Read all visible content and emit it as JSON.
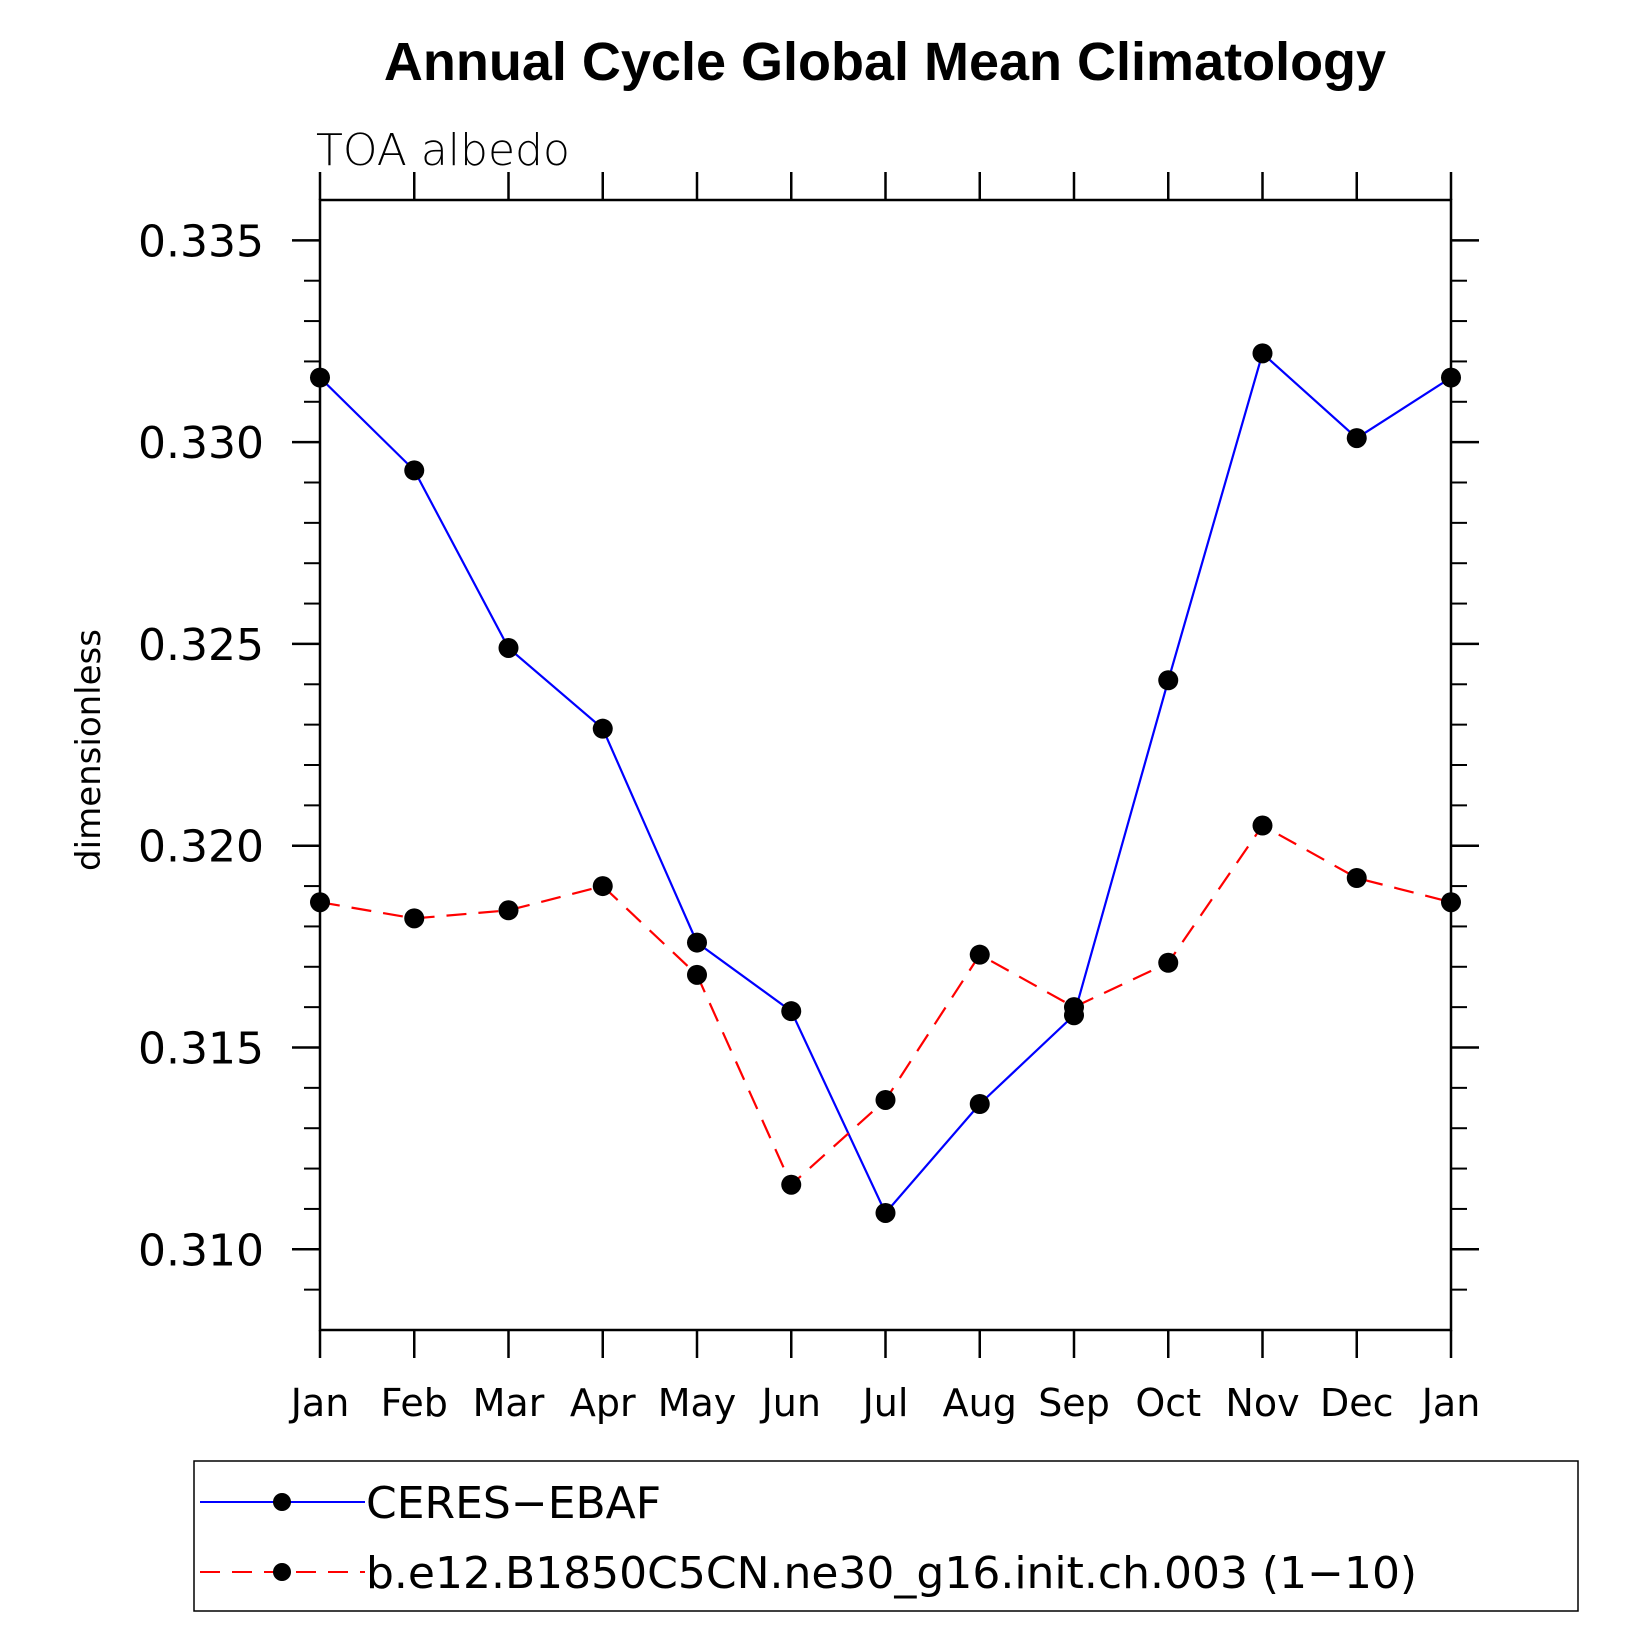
{
  "chart_data": {
    "type": "line",
    "title": "Annual Cycle Global Mean Climatology",
    "subtitle": "TOA  albedo",
    "xlabel": "",
    "ylabel": "dimensionless",
    "categories": [
      "Jan",
      "Feb",
      "Mar",
      "Apr",
      "May",
      "Jun",
      "Jul",
      "Aug",
      "Sep",
      "Oct",
      "Nov",
      "Dec",
      "Jan"
    ],
    "ylim": [
      0.308,
      0.336
    ],
    "yticks": [
      0.31,
      0.315,
      0.32,
      0.325,
      0.33,
      0.335
    ],
    "ytick_labels": [
      "0.310",
      "0.315",
      "0.320",
      "0.325",
      "0.330",
      "0.335"
    ],
    "grid": false,
    "legend_position": "bottom",
    "series": [
      {
        "name": "CERES−EBAF",
        "color": "#0000ff",
        "dash": "solid",
        "marker": "filled-circle",
        "values": [
          0.3316,
          0.3293,
          0.3249,
          0.3229,
          0.3176,
          0.3159,
          0.3109,
          0.3136,
          0.3158,
          0.3241,
          0.3322,
          0.3301,
          0.3316
        ]
      },
      {
        "name": "b.e12.B1850C5CN.ne30_g16.init.ch.003 (1−10)",
        "color": "#ff0000",
        "dash": "dashed",
        "marker": "filled-circle",
        "values": [
          0.3186,
          0.3182,
          0.3184,
          0.319,
          0.3168,
          0.3116,
          0.3137,
          0.3173,
          0.316,
          0.3171,
          0.3205,
          0.3192,
          0.3186
        ]
      }
    ]
  }
}
